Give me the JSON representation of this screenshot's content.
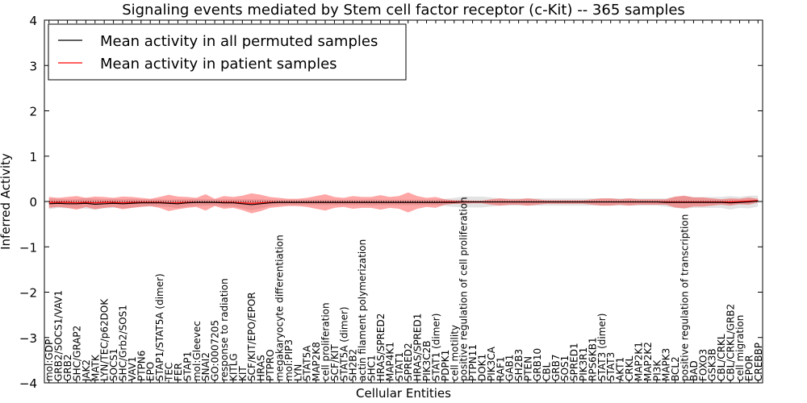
{
  "chart_data": {
    "type": "line",
    "title": "Signaling events mediated by Stem cell factor receptor (c-Kit) -- 365 samples",
    "xlabel": "Cellular Entities",
    "ylabel": "Inferred Activity",
    "ylim": [
      -4,
      4
    ],
    "yticks": [
      -4,
      -3,
      -2,
      -1,
      0,
      1,
      2,
      3,
      4
    ],
    "ytick_labels": [
      "−4",
      "−3",
      "−2",
      "−1",
      "0",
      "1",
      "2",
      "3",
      "4"
    ],
    "legend_position": "top-left",
    "categories": [
      "mol:GDP",
      "GRB2/SOCS1/VAV1",
      "GRB2",
      "SHC/GRAP2",
      "JAK2",
      "MATK",
      "LYN/TEC/p62DOK",
      "SOCS1",
      "SHC/Grb2/SOS1",
      "VAV1",
      "PTPN6",
      "EPO",
      "STAP1/STAT5A (dimer)",
      "TEC",
      "FER",
      "STAP1",
      "mol:Gleevec",
      "SNAI2",
      "GO:0007205",
      "response to radiation",
      "KITLG",
      "KIT",
      "SCF/KIT/EPO/EPOR",
      "HRAS",
      "PTPRO",
      "megakaryocyte differentiation",
      "mol:PIP3",
      "LYN",
      "STAT5A",
      "MAP2K8",
      "cell proliferation",
      "SCF/KIT",
      "STAT5A (dimer)",
      "SH2B2",
      "actin filament polymerization",
      "SHC1",
      "HRAS/SPRED2",
      "MAP4K1",
      "STAT1",
      "SPRED2",
      "HRAS/SPRED1",
      "PIK3C2B",
      "STAT1 (dimer)",
      "PDPK1",
      "cell motility",
      "positive regulation of cell proliferation",
      "PTPN11",
      "DOK1",
      "PIK3CA",
      "RAF1",
      "GAB1",
      "SH2B3",
      "PTEN",
      "GRB10",
      "CBL",
      "GRB7",
      "SOS1",
      "SPRED1",
      "PIK3R1",
      "RPS6KB1",
      "STAT3 (dimer)",
      "STAT3",
      "AKT1",
      "CRKL",
      "MAP2K1",
      "MAP2K2",
      "PI3K",
      "MAPK3",
      "BCL2",
      "positive regulation of transcription",
      "BAD",
      "FOXO3",
      "GSK3B",
      "CBL/CRKL",
      "CBL/CRKL/GRB2",
      "cell migration",
      "EPOR",
      "CREBBP"
    ],
    "series": [
      {
        "name": "Mean activity in all permuted samples",
        "color": "#000000",
        "values": [
          -0.05,
          -0.04,
          -0.05,
          -0.05,
          -0.04,
          -0.06,
          -0.05,
          -0.04,
          -0.05,
          -0.04,
          -0.03,
          -0.03,
          -0.03,
          -0.04,
          -0.05,
          -0.03,
          -0.02,
          -0.02,
          -0.02,
          -0.03,
          -0.03,
          -0.05,
          -0.07,
          -0.05,
          -0.03,
          -0.02,
          -0.02,
          -0.02,
          -0.02,
          -0.02,
          -0.02,
          -0.02,
          -0.02,
          -0.02,
          -0.02,
          -0.02,
          -0.02,
          -0.02,
          -0.02,
          -0.02,
          -0.02,
          -0.02,
          -0.02,
          -0.02,
          -0.02,
          -0.01,
          -0.01,
          -0.01,
          -0.01,
          -0.01,
          -0.01,
          -0.01,
          -0.01,
          -0.01,
          -0.01,
          -0.01,
          -0.01,
          -0.01,
          -0.01,
          -0.01,
          -0.01,
          -0.01,
          -0.01,
          -0.01,
          -0.01,
          -0.01,
          -0.01,
          -0.02,
          -0.02,
          -0.02,
          -0.02,
          -0.02,
          -0.02,
          -0.02,
          -0.03,
          -0.02,
          -0.01,
          0.01
        ],
        "band": [
          0.12,
          0.1,
          0.1,
          0.1,
          0.12,
          0.12,
          0.1,
          0.1,
          0.1,
          0.1,
          0.08,
          0.08,
          0.08,
          0.08,
          0.1,
          0.08,
          0.08,
          0.07,
          0.07,
          0.08,
          0.08,
          0.1,
          0.12,
          0.1,
          0.07,
          0.06,
          0.06,
          0.06,
          0.06,
          0.06,
          0.06,
          0.06,
          0.06,
          0.06,
          0.06,
          0.07,
          0.06,
          0.06,
          0.06,
          0.06,
          0.06,
          0.06,
          0.06,
          0.08,
          0.1,
          0.12,
          0.12,
          0.12,
          0.1,
          0.08,
          0.08,
          0.08,
          0.08,
          0.08,
          0.08,
          0.08,
          0.08,
          0.08,
          0.08,
          0.08,
          0.08,
          0.08,
          0.08,
          0.08,
          0.08,
          0.08,
          0.08,
          0.09,
          0.12,
          0.14,
          0.12,
          0.12,
          0.12,
          0.12,
          0.15,
          0.12,
          0.14,
          0.12
        ]
      },
      {
        "name": "Mean activity in patient samples",
        "color": "#ff0000",
        "values": [
          -0.02,
          -0.02,
          -0.02,
          -0.03,
          -0.02,
          -0.03,
          -0.02,
          -0.02,
          -0.03,
          -0.02,
          -0.02,
          -0.02,
          -0.02,
          -0.03,
          -0.03,
          -0.02,
          -0.02,
          -0.02,
          -0.02,
          -0.02,
          -0.02,
          -0.03,
          -0.04,
          -0.03,
          -0.02,
          -0.02,
          -0.02,
          -0.02,
          -0.02,
          -0.02,
          -0.02,
          -0.02,
          -0.02,
          -0.02,
          -0.02,
          -0.02,
          -0.02,
          -0.02,
          -0.02,
          -0.02,
          -0.02,
          -0.02,
          -0.02,
          -0.01,
          -0.01,
          -0.01,
          -0.01,
          -0.01,
          -0.01,
          -0.01,
          -0.01,
          -0.01,
          -0.01,
          -0.01,
          -0.01,
          -0.01,
          -0.01,
          -0.01,
          -0.01,
          -0.01,
          -0.01,
          -0.01,
          -0.01,
          -0.01,
          -0.01,
          -0.01,
          -0.01,
          -0.01,
          -0.01,
          -0.01,
          -0.01,
          -0.01,
          -0.01,
          -0.01,
          -0.01,
          0.0,
          0.01,
          0.02
        ],
        "band": [
          0.12,
          0.1,
          0.12,
          0.15,
          0.1,
          0.14,
          0.12,
          0.1,
          0.14,
          0.12,
          0.1,
          0.08,
          0.12,
          0.18,
          0.14,
          0.12,
          0.1,
          0.18,
          0.08,
          0.14,
          0.12,
          0.16,
          0.22,
          0.18,
          0.12,
          0.1,
          0.08,
          0.08,
          0.1,
          0.14,
          0.18,
          0.12,
          0.1,
          0.14,
          0.12,
          0.12,
          0.16,
          0.12,
          0.14,
          0.22,
          0.14,
          0.1,
          0.12,
          0.06,
          0.04,
          0.04,
          0.03,
          0.03,
          0.06,
          0.08,
          0.06,
          0.06,
          0.08,
          0.06,
          0.04,
          0.04,
          0.04,
          0.04,
          0.04,
          0.06,
          0.08,
          0.08,
          0.06,
          0.08,
          0.06,
          0.06,
          0.06,
          0.06,
          0.12,
          0.14,
          0.1,
          0.1,
          0.08,
          0.06,
          0.08,
          0.06,
          0.08,
          0.04
        ]
      }
    ]
  }
}
